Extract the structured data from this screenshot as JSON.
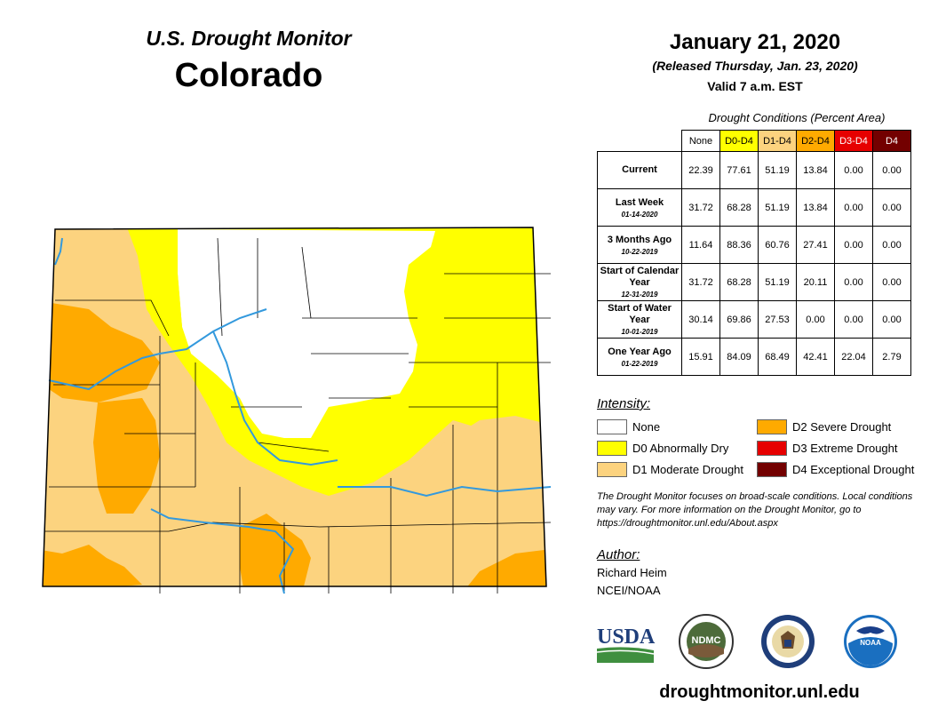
{
  "header": {
    "title": "U.S. Drought Monitor",
    "state": "Colorado"
  },
  "date_block": {
    "date": "January 21, 2020",
    "released": "(Released Thursday, Jan. 23, 2020)",
    "valid": "Valid 7 a.m. EST"
  },
  "conditions": {
    "caption": "Drought Conditions (Percent Area)",
    "columns": [
      "None",
      "D0-D4",
      "D1-D4",
      "D2-D4",
      "D3-D4",
      "D4"
    ],
    "column_colors": [
      "#ffffff",
      "#ffff00",
      "#fcd37f",
      "#ffaa00",
      "#e60000",
      "#730000"
    ],
    "rows": [
      {
        "label": "Current",
        "date": "",
        "values": [
          "22.39",
          "77.61",
          "51.19",
          "13.84",
          "0.00",
          "0.00"
        ]
      },
      {
        "label": "Last Week",
        "date": "01-14-2020",
        "values": [
          "31.72",
          "68.28",
          "51.19",
          "13.84",
          "0.00",
          "0.00"
        ]
      },
      {
        "label": "3 Months Ago",
        "date": "10-22-2019",
        "values": [
          "11.64",
          "88.36",
          "60.76",
          "27.41",
          "0.00",
          "0.00"
        ]
      },
      {
        "label": "Start of Calendar Year",
        "date": "12-31-2019",
        "values": [
          "31.72",
          "68.28",
          "51.19",
          "20.11",
          "0.00",
          "0.00"
        ]
      },
      {
        "label": "Start of Water Year",
        "date": "10-01-2019",
        "values": [
          "30.14",
          "69.86",
          "27.53",
          "0.00",
          "0.00",
          "0.00"
        ]
      },
      {
        "label": "One Year Ago",
        "date": "01-22-2019",
        "values": [
          "15.91",
          "84.09",
          "68.49",
          "42.41",
          "22.04",
          "2.79"
        ]
      }
    ]
  },
  "legend": {
    "title": "Intensity:",
    "items": [
      {
        "label": "None",
        "color": "#ffffff"
      },
      {
        "label": "D0 Abnormally Dry",
        "color": "#ffff00"
      },
      {
        "label": "D1 Moderate Drought",
        "color": "#fcd37f"
      },
      {
        "label": "D2 Severe Drought",
        "color": "#ffaa00"
      },
      {
        "label": "D3 Extreme Drought",
        "color": "#e60000"
      },
      {
        "label": "D4 Exceptional Drought",
        "color": "#730000"
      }
    ]
  },
  "note": "The Drought Monitor focuses on broad-scale conditions. Local conditions may vary. For more information on the Drought Monitor, go to https://droughtmonitor.unl.edu/About.aspx",
  "author": {
    "title": "Author:",
    "name": "Richard Heim",
    "org": "NCEI/NOAA"
  },
  "logos": {
    "usda": "USDA",
    "ndmc": "NDMC",
    "noaa": "NOAA"
  },
  "footer": {
    "website": "droughtmonitor.unl.edu"
  },
  "map": {
    "colors": {
      "none": "#ffffff",
      "d0": "#ffff00",
      "d1": "#fcd37f",
      "d2": "#ffaa00",
      "river": "#3399dd",
      "border": "#000000"
    }
  }
}
